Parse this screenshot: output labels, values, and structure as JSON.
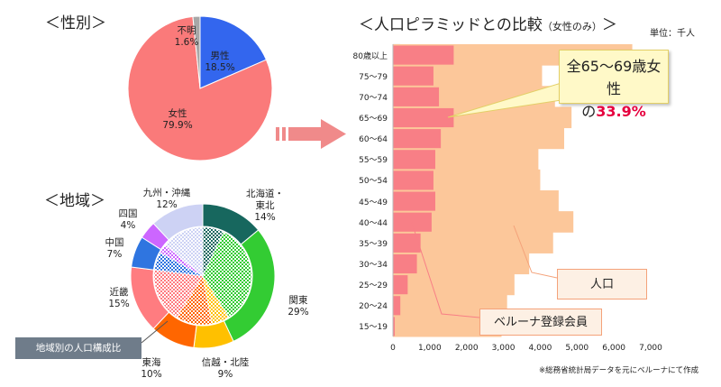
{
  "titles": {
    "gender": "＜性別＞",
    "region": "＜地域＞",
    "pyramid": "＜人口ピラミッドとの比較",
    "pyramid_sub": "（女性のみ）",
    "pyramid_close": "＞",
    "unit": "単位：千人"
  },
  "callout": {
    "line1": "全65～69歳女性",
    "line2_prefix": "の",
    "line2_value": "33.9%"
  },
  "legend": {
    "population": "人口",
    "members": "ベルーナ登録会員"
  },
  "region_note": "地域別の人口構成比",
  "source_note": "※総務省統計局データを元にベルーナにて作成",
  "colors": {
    "female": "#fa7a7a",
    "male": "#3366ee",
    "unknown": "#a7a7a7",
    "population_bar": "#fcc79a",
    "member_bar": "#f87f86",
    "callout_bg": "#fff9c8",
    "highlight": "#e6003e"
  },
  "chart_data": [
    {
      "type": "pie",
      "title": "＜性別＞",
      "slices": [
        {
          "name": "男性",
          "value": 18.5,
          "label": "18.5%",
          "color": "#3366ee"
        },
        {
          "name": "女性",
          "value": 79.9,
          "label": "79.9%",
          "color": "#fa7a7a"
        },
        {
          "name": "不明",
          "value": 1.6,
          "label": "1.6%",
          "color": "#a7a7a7"
        }
      ]
    },
    {
      "type": "pie",
      "title": "＜地域＞",
      "slices": [
        {
          "name": "北海道・東北",
          "value": 14,
          "label": "14%",
          "color": "#17675e"
        },
        {
          "name": "関東",
          "value": 29,
          "label": "29%",
          "color": "#33cc33"
        },
        {
          "name": "信越・北陸",
          "value": 9,
          "label": "9%",
          "color": "#ffc000"
        },
        {
          "name": "東海",
          "value": 10,
          "label": "10%",
          "color": "#ff6600"
        },
        {
          "name": "近畿",
          "value": 15,
          "label": "15%",
          "color": "#ff7c80"
        },
        {
          "name": "中国",
          "value": 7,
          "label": "7%",
          "color": "#2f75e0"
        },
        {
          "name": "四国",
          "value": 4,
          "label": "4%",
          "color": "#cc66ff"
        },
        {
          "name": "九州・沖縄",
          "value": 12,
          "label": "12%",
          "color": "#cdd2f4"
        }
      ],
      "inner_ring_note": "地域別の人口構成比",
      "inner_values": [
        7,
        34,
        6,
        12,
        18,
        6,
        3,
        14
      ]
    },
    {
      "type": "bar",
      "title": "＜人口ピラミッドとの比較（女性のみ）＞",
      "unit": "単位：千人",
      "categories": [
        "80歳以上",
        "75～79",
        "70～74",
        "65～69",
        "60～64",
        "55～59",
        "50～54",
        "45～49",
        "40～44",
        "35～39",
        "30～34",
        "25～29",
        "20～24",
        "15～19"
      ],
      "series": [
        {
          "name": "人口",
          "values": [
            6500,
            4050,
            4400,
            4850,
            4650,
            3950,
            4000,
            4500,
            4900,
            4350,
            3700,
            3300,
            3100,
            2950
          ]
        },
        {
          "name": "ベルーナ登録会員",
          "values": [
            1650,
            1100,
            1250,
            1650,
            1300,
            1150,
            1100,
            1150,
            1050,
            750,
            650,
            400,
            200,
            50
          ]
        }
      ],
      "xlim": [
        0,
        7000
      ],
      "xticks": [
        "0",
        "1,000",
        "2,000",
        "3,000",
        "4,000",
        "5,000",
        "6,000",
        "7,000"
      ]
    }
  ]
}
